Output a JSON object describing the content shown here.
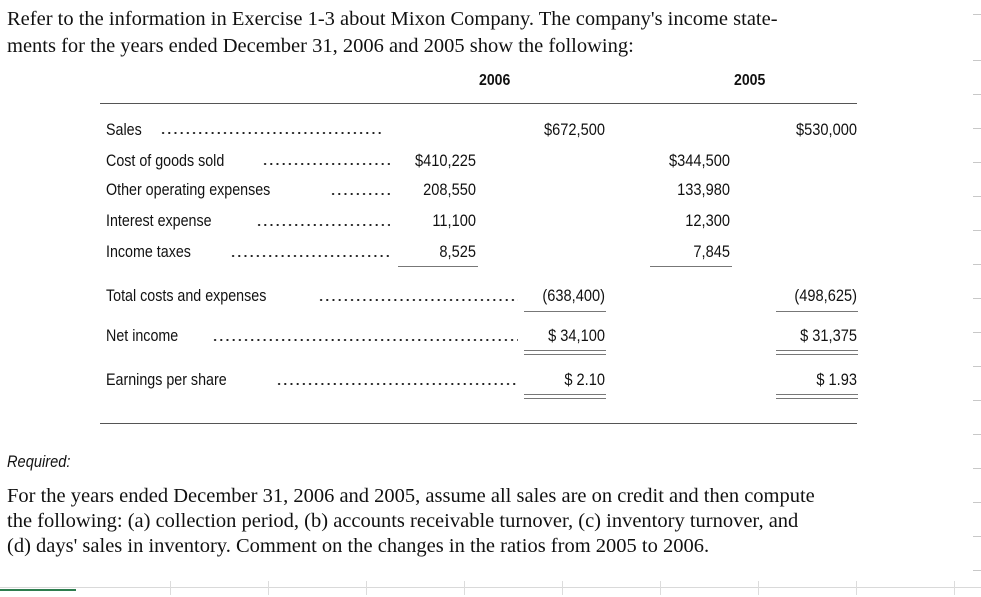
{
  "intro": {
    "line1": "Refer to the information in Exercise 1-3 about Mixon Company. The company's income state-",
    "line2": "ments for the years ended December 31, 2006 and 2005 show the following:"
  },
  "year_headers": [
    "2006",
    "2005"
  ],
  "rows": [
    {
      "label": "Sales",
      "a": "",
      "b": "$672,500",
      "c": "",
      "d": "$530,000"
    },
    {
      "label": "Cost of goods sold",
      "a": "$410,225",
      "b": "",
      "c": "$344,500",
      "d": ""
    },
    {
      "label": "Other operating expenses",
      "a": "208,550",
      "b": "",
      "c": "133,980",
      "d": ""
    },
    {
      "label": "Interest expense",
      "a": "11,100",
      "b": "",
      "c": "12,300",
      "d": ""
    },
    {
      "label": "Income taxes",
      "a": "8,525",
      "b": "",
      "c": "7,845",
      "d": ""
    },
    {
      "label": "Total costs and expenses",
      "a": "",
      "b": "(638,400)",
      "c": "",
      "d": "(498,625)"
    },
    {
      "label": "Net income",
      "a": "",
      "b": "$ 34,100",
      "c": "",
      "d": "$ 31,375"
    },
    {
      "label": "Earnings per share",
      "a": "",
      "b": "$ 2.10",
      "c": "",
      "d": "$ 1.93"
    }
  ],
  "required_label": "Required:",
  "required_text": {
    "line1": "For the years ended December 31, 2006 and 2005, assume all sales are on credit and then compute",
    "line2": "the following: (a) collection period, (b) accounts receivable turnover, (c) inventory turnover, and",
    "line3": "(d) days' sales in inventory. Comment on the changes in the ratios from 2005 to 2006."
  }
}
